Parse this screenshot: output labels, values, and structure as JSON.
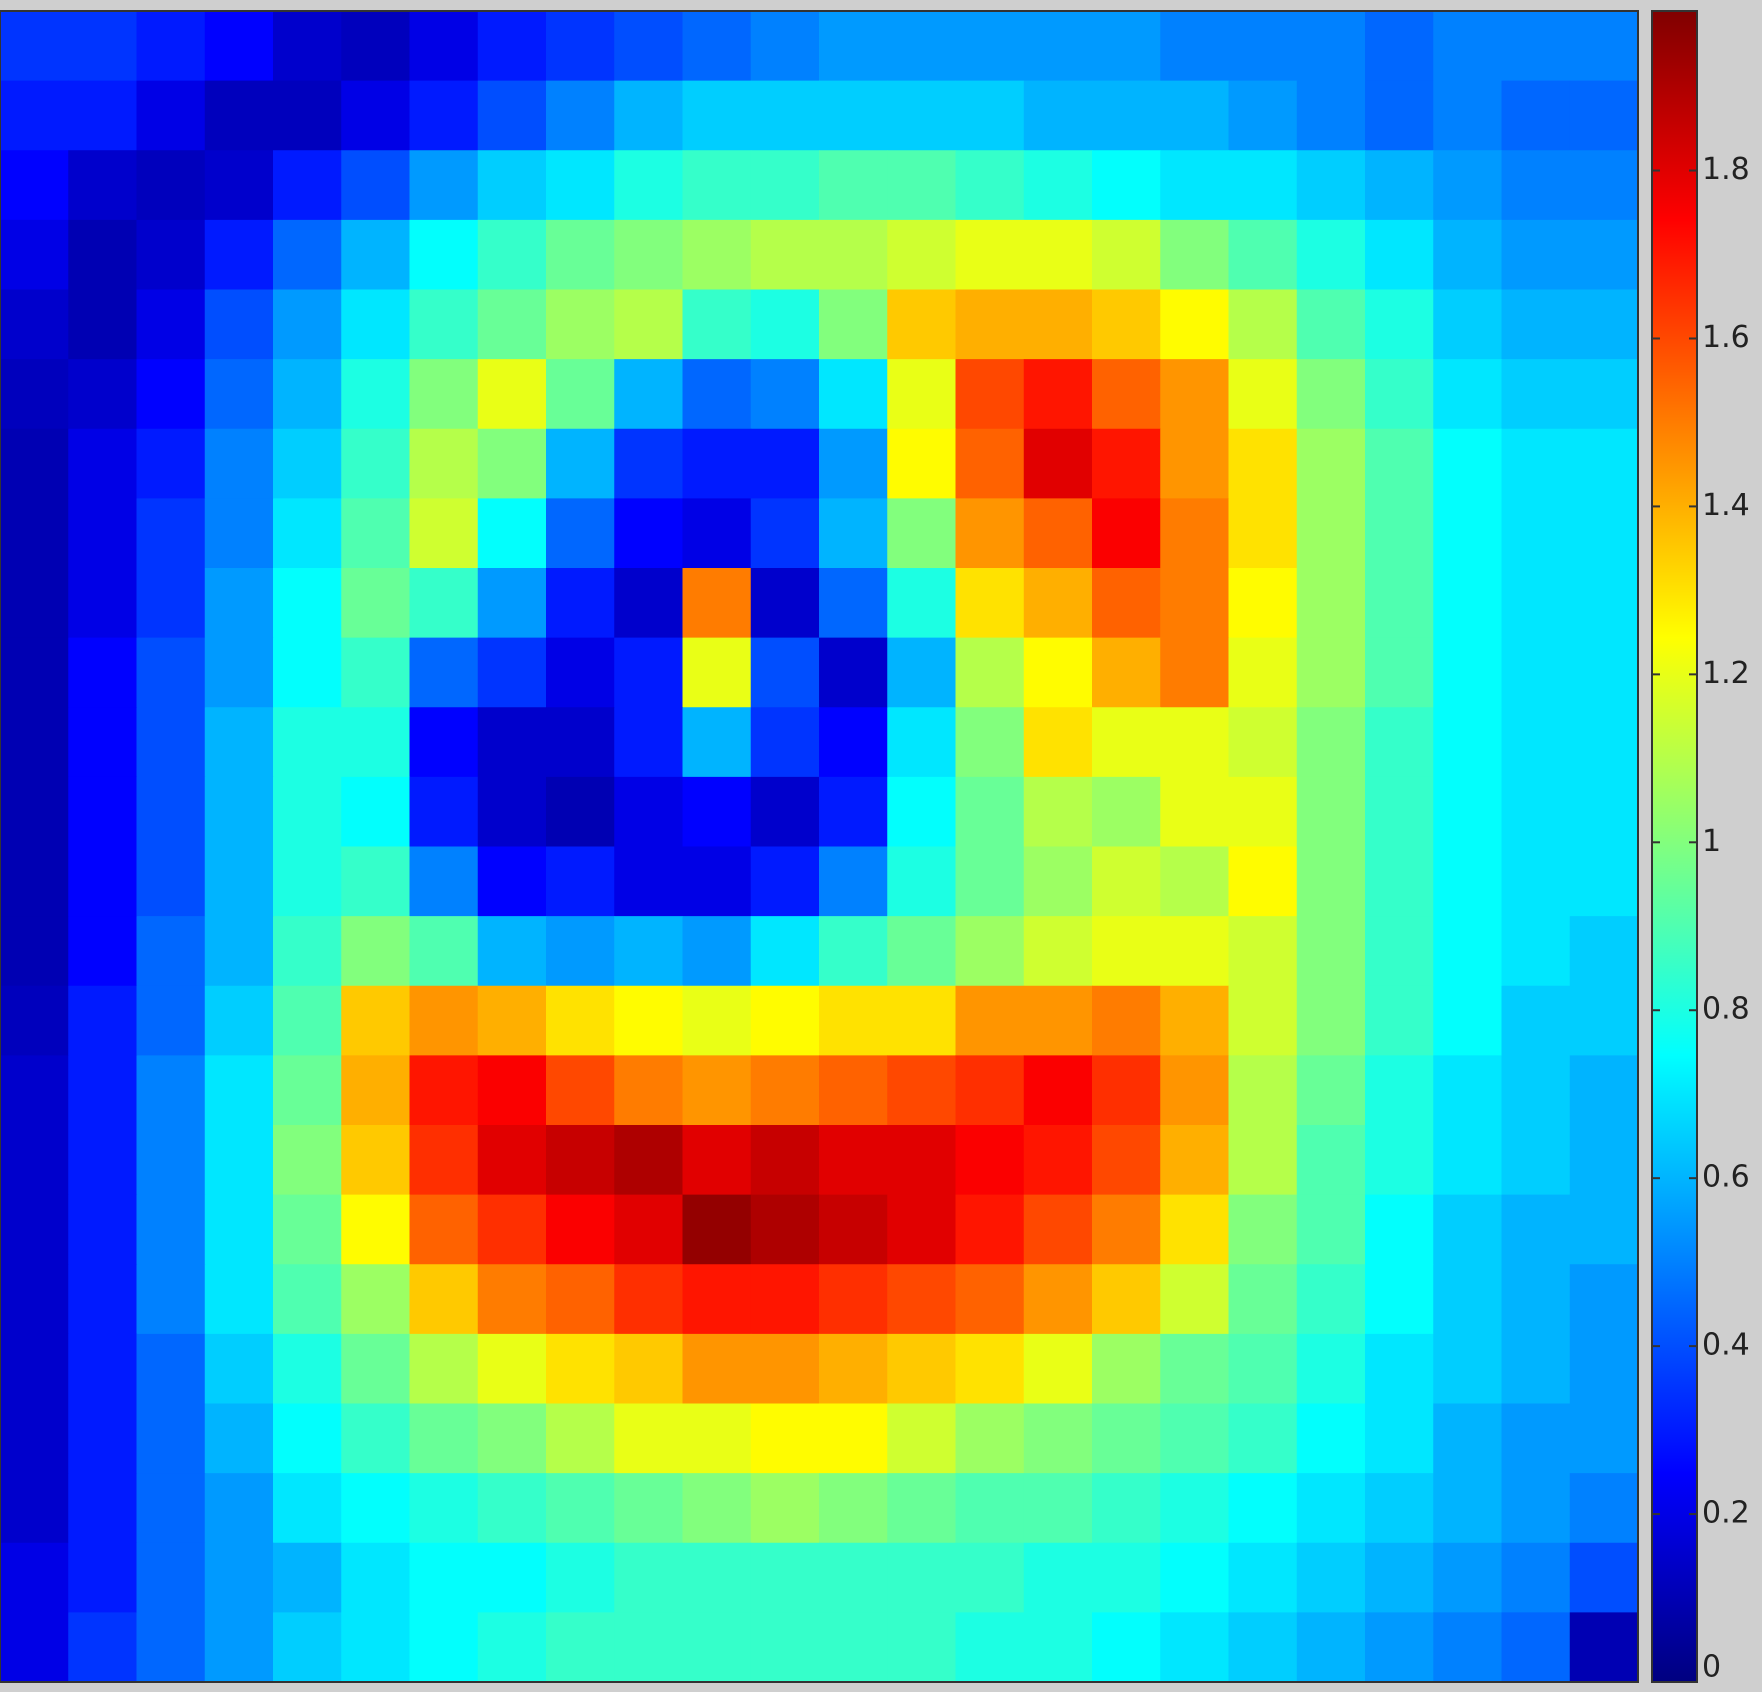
{
  "chart_data": {
    "type": "heatmap",
    "colormap": "jet",
    "clim": [
      0,
      1.99
    ],
    "cticks": [
      0,
      0.2,
      0.4,
      0.6,
      0.8,
      1,
      1.2,
      1.4,
      1.6,
      1.8
    ],
    "z": [
      [
        0.35,
        0.35,
        0.3,
        0.25,
        0.15,
        0.12,
        0.2,
        0.3,
        0.35,
        0.4,
        0.45,
        0.5,
        0.55,
        0.55,
        0.55,
        0.55,
        0.55,
        0.5,
        0.5,
        0.5,
        0.45,
        0.5,
        0.5,
        0.5
      ],
      [
        0.3,
        0.3,
        0.2,
        0.12,
        0.12,
        0.2,
        0.3,
        0.4,
        0.5,
        0.6,
        0.65,
        0.65,
        0.65,
        0.65,
        0.65,
        0.6,
        0.6,
        0.6,
        0.55,
        0.5,
        0.45,
        0.5,
        0.45,
        0.45
      ],
      [
        0.25,
        0.15,
        0.12,
        0.15,
        0.3,
        0.4,
        0.55,
        0.65,
        0.7,
        0.8,
        0.85,
        0.85,
        0.9,
        0.9,
        0.85,
        0.8,
        0.75,
        0.7,
        0.7,
        0.65,
        0.6,
        0.55,
        0.5,
        0.5
      ],
      [
        0.2,
        0.1,
        0.15,
        0.3,
        0.45,
        0.6,
        0.75,
        0.85,
        0.95,
        1.0,
        1.05,
        1.1,
        1.1,
        1.15,
        1.2,
        1.2,
        1.15,
        1.0,
        0.9,
        0.8,
        0.7,
        0.6,
        0.55,
        0.55
      ],
      [
        0.15,
        0.1,
        0.2,
        0.4,
        0.55,
        0.7,
        0.85,
        0.95,
        1.05,
        1.1,
        0.85,
        0.8,
        1.0,
        1.35,
        1.4,
        1.4,
        1.35,
        1.25,
        1.1,
        0.9,
        0.8,
        0.65,
        0.6,
        0.6
      ],
      [
        0.12,
        0.15,
        0.25,
        0.45,
        0.6,
        0.8,
        1.0,
        1.2,
        0.95,
        0.6,
        0.45,
        0.5,
        0.7,
        1.2,
        1.6,
        1.7,
        1.55,
        1.45,
        1.2,
        1.0,
        0.85,
        0.7,
        0.65,
        0.65
      ],
      [
        0.1,
        0.2,
        0.3,
        0.5,
        0.65,
        0.85,
        1.1,
        1.0,
        0.6,
        0.35,
        0.3,
        0.3,
        0.55,
        1.25,
        1.55,
        1.8,
        1.7,
        1.45,
        1.3,
        1.05,
        0.9,
        0.75,
        0.7,
        0.7
      ],
      [
        0.1,
        0.2,
        0.35,
        0.5,
        0.7,
        0.9,
        1.15,
        0.75,
        0.45,
        0.25,
        0.2,
        0.35,
        0.6,
        1.0,
        1.45,
        1.55,
        1.75,
        1.5,
        1.3,
        1.05,
        0.9,
        0.75,
        0.7,
        0.7
      ],
      [
        0.1,
        0.2,
        0.35,
        0.55,
        0.75,
        0.95,
        0.85,
        0.55,
        0.3,
        0.15,
        1.5,
        0.15,
        0.45,
        0.8,
        1.3,
        1.4,
        1.55,
        1.5,
        1.25,
        1.05,
        0.9,
        0.75,
        0.7,
        0.7
      ],
      [
        0.1,
        0.25,
        0.4,
        0.55,
        0.75,
        0.85,
        0.45,
        0.35,
        0.2,
        0.3,
        1.2,
        0.4,
        0.15,
        0.6,
        1.1,
        1.25,
        1.4,
        1.5,
        1.2,
        1.05,
        0.9,
        0.75,
        0.7,
        0.7
      ],
      [
        0.1,
        0.25,
        0.4,
        0.6,
        0.8,
        0.8,
        0.25,
        0.15,
        0.15,
        0.3,
        0.6,
        0.35,
        0.25,
        0.7,
        1.0,
        1.3,
        1.2,
        1.2,
        1.15,
        1.0,
        0.85,
        0.75,
        0.7,
        0.7
      ],
      [
        0.1,
        0.25,
        0.4,
        0.6,
        0.8,
        0.75,
        0.3,
        0.15,
        0.1,
        0.2,
        0.25,
        0.15,
        0.3,
        0.75,
        0.95,
        1.1,
        1.05,
        1.2,
        1.2,
        1.0,
        0.85,
        0.75,
        0.7,
        0.7
      ],
      [
        0.1,
        0.25,
        0.4,
        0.6,
        0.8,
        0.85,
        0.5,
        0.25,
        0.3,
        0.2,
        0.2,
        0.3,
        0.5,
        0.8,
        0.95,
        1.05,
        1.15,
        1.1,
        1.25,
        1.0,
        0.85,
        0.75,
        0.7,
        0.7
      ],
      [
        0.1,
        0.25,
        0.45,
        0.6,
        0.85,
        1.0,
        0.9,
        0.6,
        0.55,
        0.6,
        0.55,
        0.7,
        0.85,
        0.95,
        1.05,
        1.15,
        1.2,
        1.2,
        1.15,
        1.0,
        0.85,
        0.75,
        0.7,
        0.65
      ],
      [
        0.12,
        0.3,
        0.45,
        0.65,
        0.9,
        1.35,
        1.45,
        1.4,
        1.3,
        1.25,
        1.2,
        1.25,
        1.3,
        1.3,
        1.45,
        1.45,
        1.5,
        1.4,
        1.15,
        1.0,
        0.85,
        0.75,
        0.65,
        0.65
      ],
      [
        0.15,
        0.3,
        0.5,
        0.7,
        0.95,
        1.4,
        1.7,
        1.75,
        1.6,
        1.5,
        1.45,
        1.5,
        1.55,
        1.6,
        1.65,
        1.75,
        1.65,
        1.45,
        1.1,
        0.95,
        0.8,
        0.7,
        0.65,
        0.6
      ],
      [
        0.15,
        0.3,
        0.5,
        0.7,
        1.0,
        1.35,
        1.65,
        1.8,
        1.85,
        1.9,
        1.8,
        1.85,
        1.8,
        1.8,
        1.75,
        1.7,
        1.6,
        1.4,
        1.1,
        0.9,
        0.8,
        0.7,
        0.65,
        0.6
      ],
      [
        0.15,
        0.3,
        0.5,
        0.7,
        0.95,
        1.25,
        1.55,
        1.65,
        1.75,
        1.8,
        1.95,
        1.9,
        1.85,
        1.8,
        1.7,
        1.6,
        1.5,
        1.3,
        1.0,
        0.9,
        0.75,
        0.65,
        0.6,
        0.6
      ],
      [
        0.15,
        0.3,
        0.5,
        0.7,
        0.9,
        1.05,
        1.35,
        1.5,
        1.55,
        1.65,
        1.7,
        1.7,
        1.65,
        1.6,
        1.55,
        1.45,
        1.35,
        1.15,
        0.95,
        0.85,
        0.75,
        0.65,
        0.6,
        0.55
      ],
      [
        0.15,
        0.3,
        0.45,
        0.65,
        0.8,
        0.95,
        1.1,
        1.2,
        1.3,
        1.35,
        1.45,
        1.45,
        1.4,
        1.35,
        1.3,
        1.2,
        1.05,
        0.95,
        0.9,
        0.8,
        0.7,
        0.65,
        0.6,
        0.55
      ],
      [
        0.15,
        0.3,
        0.45,
        0.6,
        0.75,
        0.85,
        0.95,
        1.0,
        1.1,
        1.2,
        1.2,
        1.25,
        1.25,
        1.15,
        1.05,
        1.0,
        0.95,
        0.9,
        0.85,
        0.75,
        0.7,
        0.6,
        0.55,
        0.55
      ],
      [
        0.15,
        0.3,
        0.45,
        0.55,
        0.7,
        0.75,
        0.8,
        0.85,
        0.9,
        0.95,
        1.0,
        1.05,
        1.0,
        0.95,
        0.9,
        0.9,
        0.85,
        0.8,
        0.75,
        0.7,
        0.65,
        0.6,
        0.55,
        0.5
      ],
      [
        0.2,
        0.3,
        0.45,
        0.55,
        0.6,
        0.7,
        0.75,
        0.75,
        0.8,
        0.85,
        0.85,
        0.85,
        0.85,
        0.85,
        0.85,
        0.8,
        0.8,
        0.75,
        0.7,
        0.65,
        0.6,
        0.55,
        0.5,
        0.4
      ],
      [
        0.2,
        0.35,
        0.45,
        0.55,
        0.65,
        0.7,
        0.75,
        0.8,
        0.85,
        0.85,
        0.85,
        0.85,
        0.85,
        0.85,
        0.8,
        0.8,
        0.75,
        0.7,
        0.65,
        0.6,
        0.55,
        0.5,
        0.45,
        0.1
      ]
    ]
  }
}
